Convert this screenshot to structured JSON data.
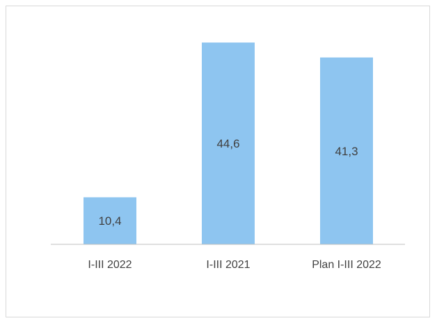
{
  "chart_data": {
    "type": "bar",
    "categories": [
      "I-III 2022",
      "I-III 2021",
      "Plan I-III 2022"
    ],
    "values": [
      10.4,
      44.6,
      41.3
    ],
    "value_labels": [
      "10,4",
      "44,6",
      "41,3"
    ],
    "ylim": [
      0,
      50
    ],
    "grid": false,
    "legend": "none",
    "colors": {
      "bar": "#8ec5f0",
      "axis": "#bfbfbf",
      "text": "#404040"
    }
  }
}
